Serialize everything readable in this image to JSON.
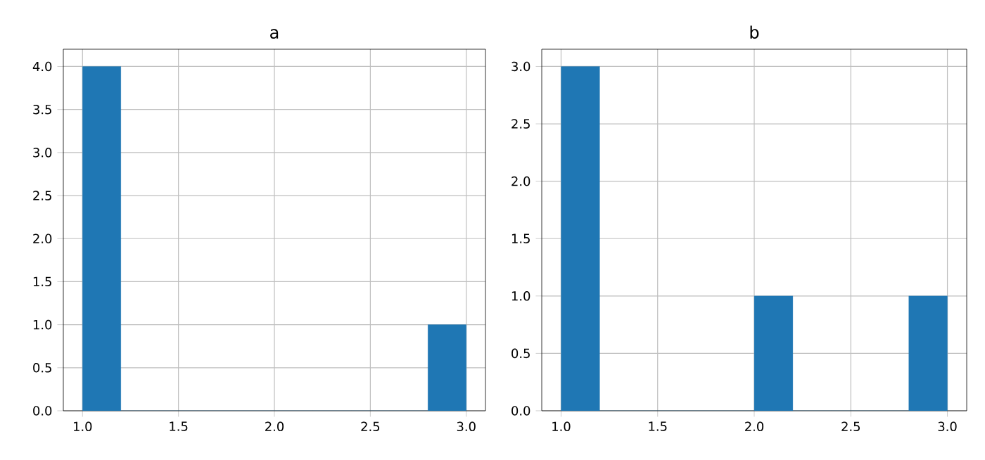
{
  "chart_data": [
    {
      "type": "histogram",
      "title": "a",
      "bins": [
        1.0,
        1.2,
        1.4,
        1.6,
        1.8,
        2.0,
        2.2,
        2.4,
        2.6,
        2.8,
        3.0
      ],
      "values": [
        4,
        0,
        0,
        0,
        0,
        0,
        0,
        0,
        0,
        1
      ],
      "color": "#1f77b4",
      "xlim": [
        0.9,
        3.1
      ],
      "ylim": [
        0,
        4.2
      ],
      "xticks": [
        {
          "value": 1,
          "label": "1.0"
        },
        {
          "value": 1.5,
          "label": "1.5"
        },
        {
          "value": 2,
          "label": "2.0"
        },
        {
          "value": 2.5,
          "label": "2.5"
        },
        {
          "value": 3,
          "label": "3.0"
        }
      ],
      "yticks": [
        {
          "value": 0,
          "label": "0.0"
        },
        {
          "value": 0.5,
          "label": "0.5"
        },
        {
          "value": 1,
          "label": "1.0"
        },
        {
          "value": 1.5,
          "label": "1.5"
        },
        {
          "value": 2,
          "label": "2.0"
        },
        {
          "value": 2.5,
          "label": "2.5"
        },
        {
          "value": 3,
          "label": "3.0"
        },
        {
          "value": 3.5,
          "label": "3.5"
        },
        {
          "value": 4,
          "label": "4.0"
        }
      ],
      "grid": true
    },
    {
      "type": "histogram",
      "title": "b",
      "bins": [
        1.0,
        1.2,
        1.4,
        1.6,
        1.8,
        2.0,
        2.2,
        2.4,
        2.6,
        2.8,
        3.0
      ],
      "values": [
        3,
        0,
        0,
        0,
        0,
        1,
        0,
        0,
        0,
        1
      ],
      "color": "#1f77b4",
      "xlim": [
        0.9,
        3.1
      ],
      "ylim": [
        0,
        3.15
      ],
      "xticks": [
        {
          "value": 1,
          "label": "1.0"
        },
        {
          "value": 1.5,
          "label": "1.5"
        },
        {
          "value": 2,
          "label": "2.0"
        },
        {
          "value": 2.5,
          "label": "2.5"
        },
        {
          "value": 3,
          "label": "3.0"
        }
      ],
      "yticks": [
        {
          "value": 0,
          "label": "0.0"
        },
        {
          "value": 0.5,
          "label": "0.5"
        },
        {
          "value": 1,
          "label": "1.0"
        },
        {
          "value": 1.5,
          "label": "1.5"
        },
        {
          "value": 2,
          "label": "2.0"
        },
        {
          "value": 2.5,
          "label": "2.5"
        },
        {
          "value": 3,
          "label": "3.0"
        }
      ],
      "grid": true
    }
  ]
}
